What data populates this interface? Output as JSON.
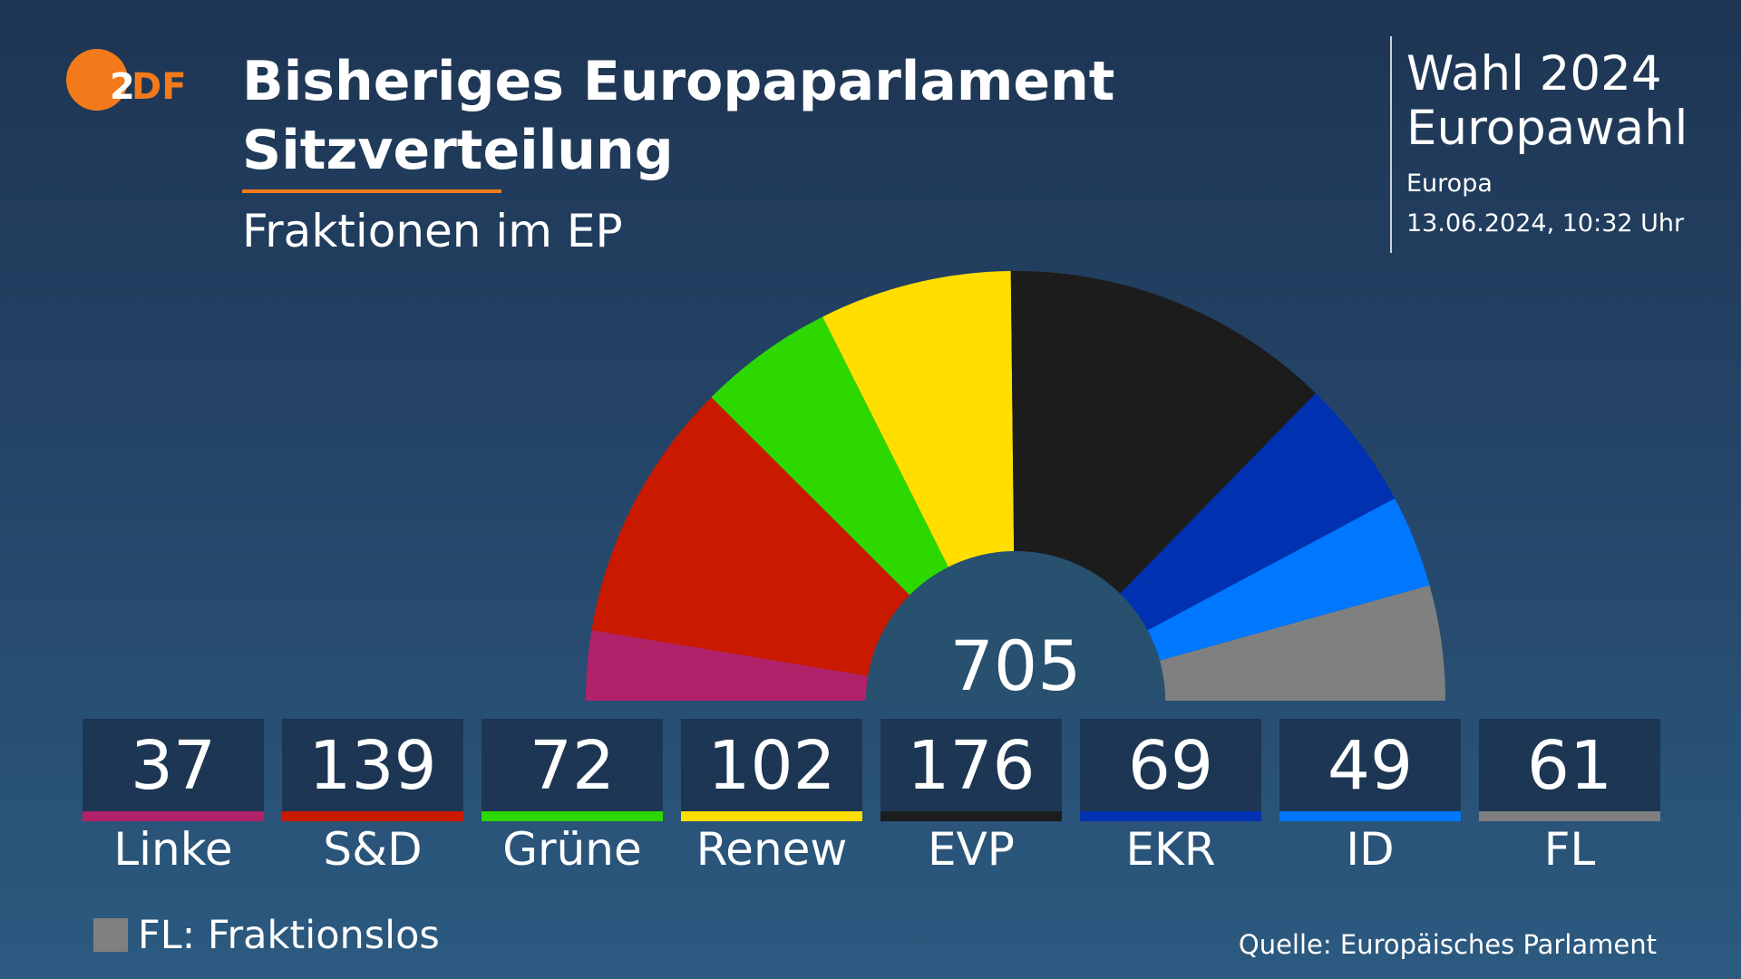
{
  "header": {
    "title_line1": "Bisheriges Europaparlament",
    "title_line2": "Sitzverteilung",
    "subtitle": "Fraktionen im EP",
    "logo_text": "ZDF",
    "accent_color": "#f27a1a"
  },
  "info": {
    "line1": "Wahl 2024",
    "line2": "Europawahl",
    "region": "Europa",
    "timestamp": "13.06.2024, 10:32 Uhr"
  },
  "chart_data": {
    "type": "pie",
    "shape": "hemicycle",
    "total": "705",
    "categories": [
      "Linke",
      "S&D",
      "Grüne",
      "Renew",
      "EVP",
      "EKR",
      "ID",
      "FL"
    ],
    "values": [
      37,
      139,
      72,
      102,
      176,
      69,
      49,
      61
    ],
    "colors": [
      "#b1226a",
      "#c91a00",
      "#2dd700",
      "#ffde00",
      "#1c1c1c",
      "#0031b0",
      "#0077ff",
      "#808080"
    ]
  },
  "legend": {
    "note": "FL: Fraktionslos",
    "color": "#808080"
  },
  "footer": {
    "source": "Quelle: Europäisches Parlament"
  }
}
